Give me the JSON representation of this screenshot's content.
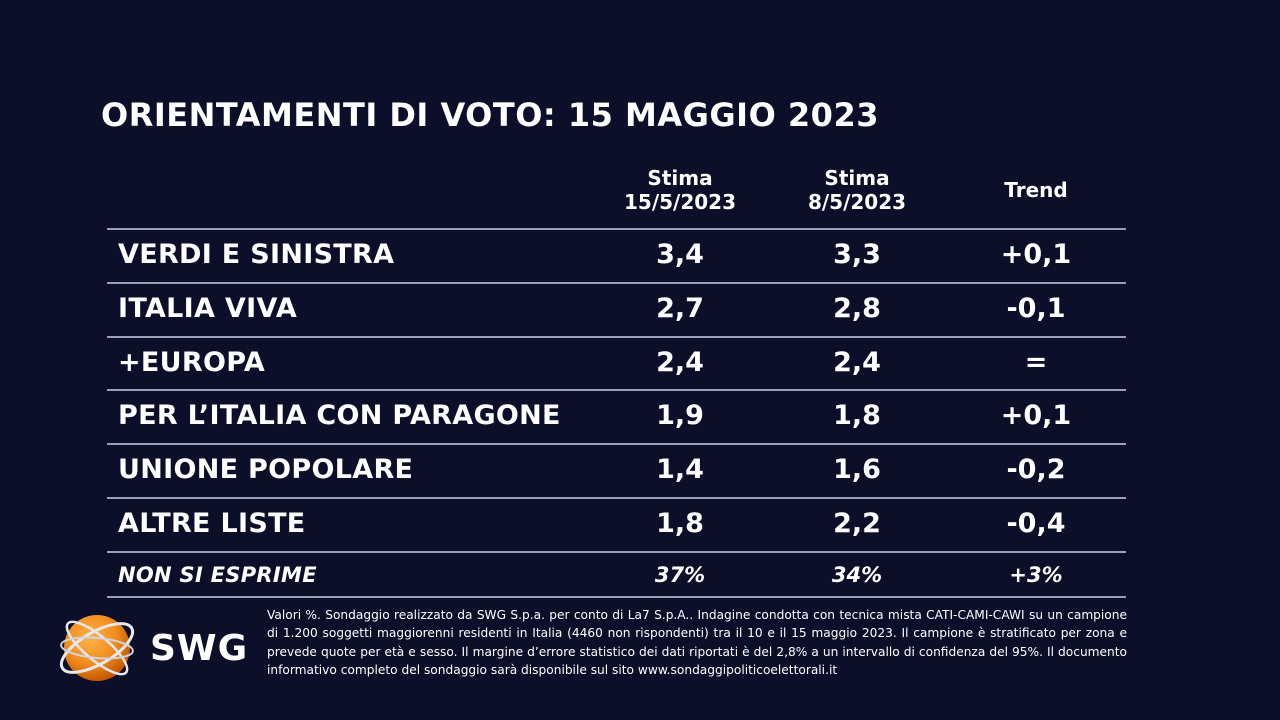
{
  "title": "ORIENTAMENTI DI VOTO: 15 MAGGIO 2023",
  "columns": {
    "current": {
      "line1": "Stima",
      "line2": "15/5/2023"
    },
    "previous": {
      "line1": "Stima",
      "line2": "8/5/2023"
    },
    "trend": "Trend"
  },
  "chart_data": {
    "type": "table",
    "title": "ORIENTAMENTI DI VOTO: 15 MAGGIO 2023",
    "columns": [
      "Stima 15/5/2023",
      "Stima 8/5/2023",
      "Trend"
    ],
    "rows": [
      {
        "party": "VERDI E SINISTRA",
        "current": "3,4",
        "previous": "3,3",
        "trend": "+0,1"
      },
      {
        "party": "ITALIA VIVA",
        "current": "2,7",
        "previous": "2,8",
        "trend": "-0,1"
      },
      {
        "party": "+EUROPA",
        "current": "2,4",
        "previous": "2,4",
        "trend": "="
      },
      {
        "party": "PER L’ITALIA CON PARAGONE",
        "current": "1,9",
        "previous": "1,8",
        "trend": "+0,1"
      },
      {
        "party": "UNIONE POPOLARE",
        "current": "1,4",
        "previous": "1,6",
        "trend": "-0,2"
      },
      {
        "party": "ALTRE LISTE",
        "current": "1,8",
        "previous": "2,2",
        "trend": "-0,4"
      },
      {
        "party": "NON SI ESPRIME",
        "current": "37%",
        "previous": "34%",
        "trend": "+3%"
      }
    ]
  },
  "footer": "Valori %. Sondaggio realizzato da SWG S.p.a. per conto di La7 S.p.A.. Indagine condotta con tecnica mista CATI-CAMI-CAWI su un campione di 1.200 soggetti maggiorenni residenti in Italia (4460 non rispondenti) tra il 10 e il 15 maggio 2023. Il campione è stratificato per zona e prevede quote per età e sesso. Il margine d’errore statistico dei dati riportati è del 2,8% a un intervallo di confidenza del 95%. Il documento informativo completo del sondaggio sarà disponibile sul sito www.sondaggipoliticoelettorali.it",
  "logo": {
    "text": "SWG",
    "icon": "swg-globe-icon",
    "color": "#f28c1e"
  },
  "colors": {
    "background": "#0b0f2a",
    "rule": "#9aa0b5",
    "text": "#ffffff"
  }
}
